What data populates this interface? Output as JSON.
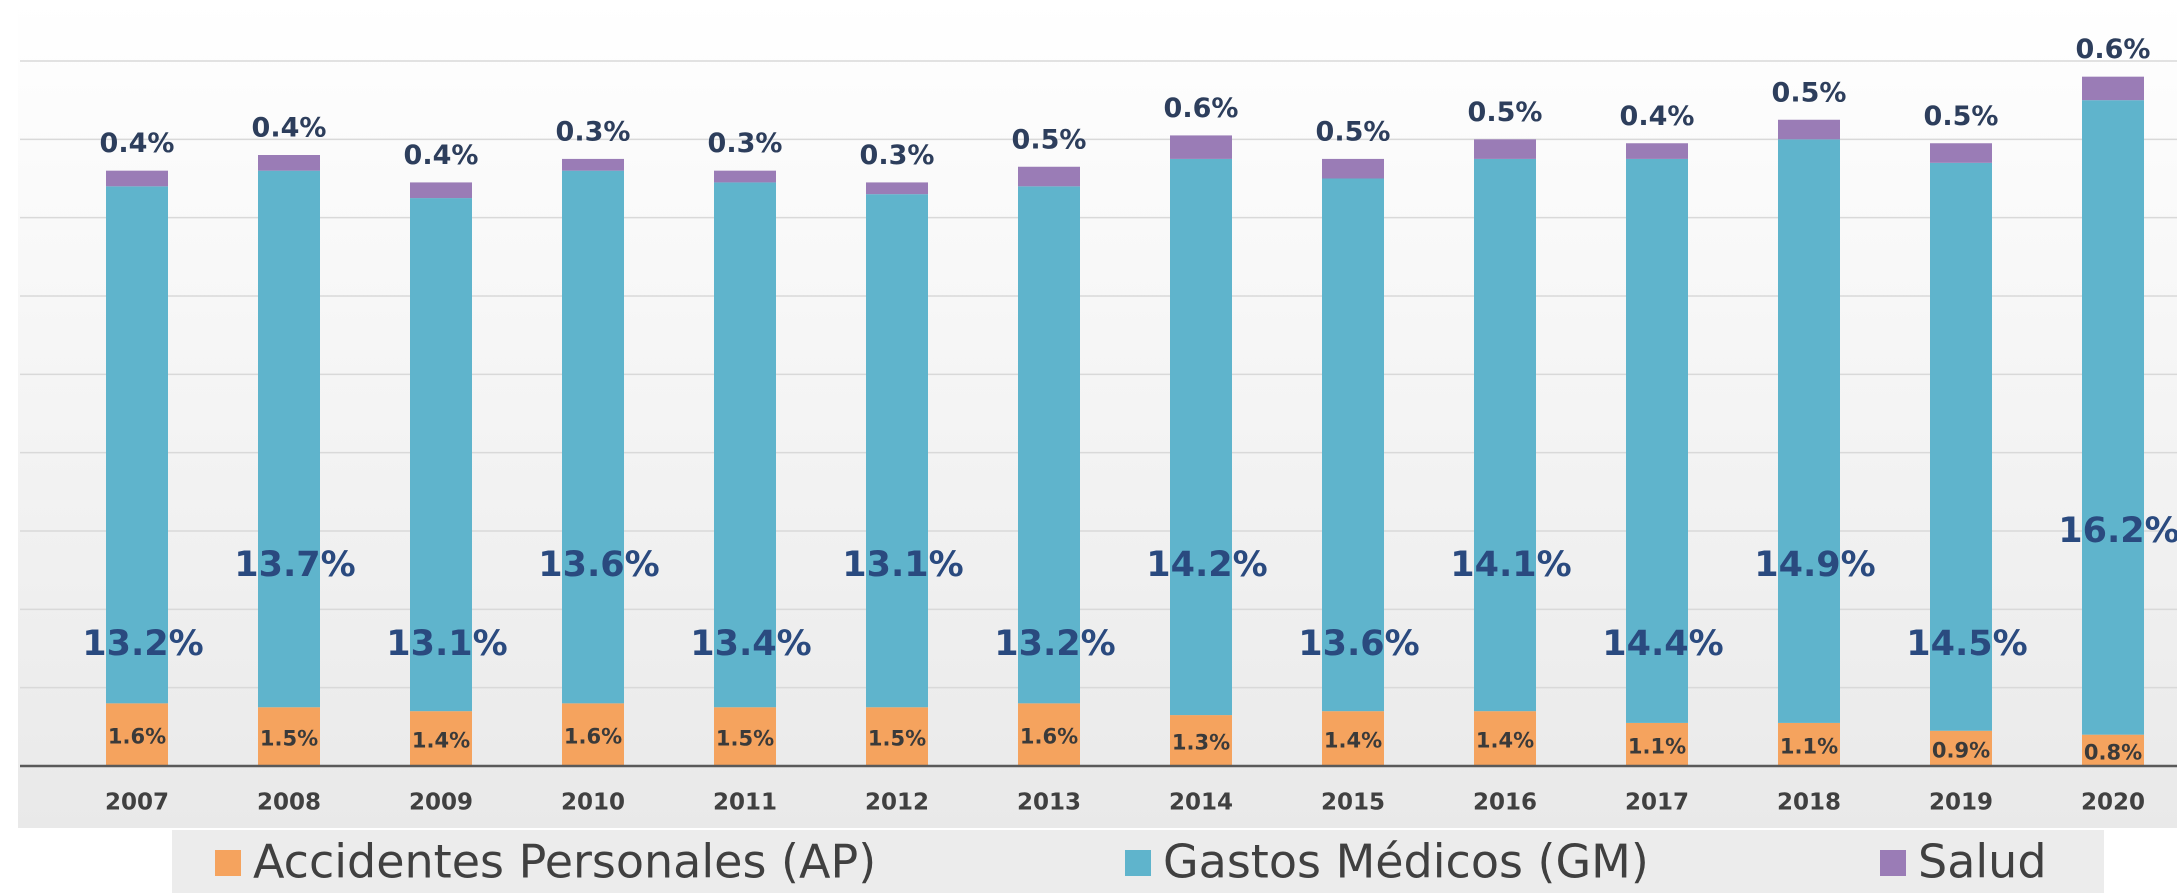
{
  "chart_data": {
    "type": "stacked-bar",
    "categories": [
      "2007",
      "2008",
      "2009",
      "2010",
      "2011",
      "2012",
      "2013",
      "2014",
      "2015",
      "2016",
      "2017",
      "2018",
      "2019",
      "2020"
    ],
    "series": [
      {
        "name": "Accidentes Personales (AP)",
        "color": "#f5a35e",
        "values": [
          1.6,
          1.5,
          1.4,
          1.6,
          1.5,
          1.5,
          1.6,
          1.3,
          1.4,
          1.4,
          1.1,
          1.1,
          0.9,
          0.8
        ],
        "value_labels": [
          "1.6%",
          "1.5%",
          "1.4%",
          "1.6%",
          "1.5%",
          "1.5%",
          "1.6%",
          "1.3%",
          "1.4%",
          "1.4%",
          "1.1%",
          "1.1%",
          "0.9%",
          "0.8%"
        ]
      },
      {
        "name": "Gastos Médicos (GM)",
        "color": "#5fb4cc",
        "values": [
          13.2,
          13.7,
          13.1,
          13.6,
          13.4,
          13.1,
          13.2,
          14.2,
          13.6,
          14.1,
          14.4,
          14.9,
          14.5,
          16.2
        ],
        "value_labels": [
          "13.2%",
          "13.7%",
          "13.1%",
          "13.6%",
          "13.4%",
          "13.1%",
          "13.2%",
          "14.2%",
          "13.6%",
          "14.1%",
          "14.4%",
          "14.9%",
          "14.5%",
          "16.2%"
        ]
      },
      {
        "name": "Salud",
        "color": "#9a7cb6",
        "values": [
          0.4,
          0.4,
          0.4,
          0.3,
          0.3,
          0.3,
          0.5,
          0.6,
          0.5,
          0.5,
          0.4,
          0.5,
          0.5,
          0.6
        ],
        "value_labels": [
          "0.4%",
          "0.4%",
          "0.4%",
          "0.3%",
          "0.3%",
          "0.3%",
          "0.5%",
          "0.6%",
          "0.5%",
          "0.5%",
          "0.4%",
          "0.5%",
          "0.5%",
          "0.6%"
        ]
      }
    ],
    "ylim": [
      0,
      18
    ],
    "yticks": [
      0,
      2,
      4,
      6,
      8,
      10,
      12,
      14,
      16,
      18
    ],
    "grid": true,
    "legend": "bottom"
  }
}
